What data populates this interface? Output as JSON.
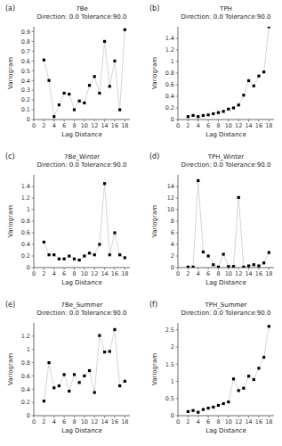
{
  "chart_data": [
    {
      "type": "line",
      "annotation": "(a)",
      "title": "7Be\nDirection: 0.0 Tolerance:90.0",
      "x_label": "Lag Distance",
      "y_label": "Variogram",
      "x": [
        2,
        3,
        4,
        5,
        6,
        7,
        8,
        9,
        10,
        11,
        12,
        13,
        14,
        15,
        16,
        17,
        18
      ],
      "values": [
        0.61,
        0.4,
        0.03,
        0.15,
        0.27,
        0.26,
        0.1,
        0.19,
        0.17,
        0.35,
        0.44,
        0.27,
        0.8,
        0.34,
        0.6,
        0.1,
        0.92
      ],
      "xlim": [
        0,
        19
      ],
      "xticks": [
        0,
        2,
        4,
        6,
        8,
        10,
        12,
        14,
        16,
        18
      ],
      "ylim": [
        0,
        0.95
      ],
      "yticks": [
        0,
        0.1,
        0.2,
        0.3,
        0.4,
        0.5,
        0.6,
        0.7,
        0.8,
        0.9
      ],
      "color": "#cccccc",
      "marker": "square",
      "colors": [
        "black",
        "black",
        "black",
        "black",
        "black",
        "black",
        "black",
        "black",
        "black",
        "black",
        "black",
        "black",
        "black",
        "black",
        "black",
        "black",
        "black"
      ]
    },
    {
      "type": "line",
      "annotation": "(b)",
      "title": "TPH\nDirection: 0.0 Tolerance:90.0",
      "x_label": "Lag Distance",
      "y_label": "Variogram",
      "x": [
        2,
        3,
        4,
        5,
        6,
        7,
        8,
        9,
        10,
        11,
        12,
        13,
        14,
        15,
        16,
        17,
        18
      ],
      "values": [
        0.05,
        0.07,
        0.05,
        0.07,
        0.08,
        0.1,
        0.12,
        0.14,
        0.18,
        0.2,
        0.25,
        0.42,
        0.67,
        0.58,
        0.75,
        0.82,
        1.6
      ],
      "xlim": [
        0,
        19
      ],
      "xticks": [
        0,
        2,
        4,
        6,
        8,
        10,
        12,
        14,
        16,
        18
      ],
      "ylim": [
        0,
        1.6
      ],
      "yticks": [
        0,
        0.2,
        0.4,
        0.6,
        0.8,
        1.0,
        1.2,
        1.4
      ],
      "color": "#cccccc",
      "marker": "square",
      "colors": [
        "black",
        "black",
        "black",
        "black",
        "black",
        "black",
        "black",
        "black",
        "black",
        "black",
        "black",
        "black",
        "black",
        "black",
        "black",
        "black",
        "black"
      ]
    },
    {
      "type": "line",
      "annotation": "(c)",
      "title": "7Be_Winter\nDirection: 0.0 Tolerance:90.0",
      "x_label": "Lag Distance",
      "y_label": "Variogram",
      "x": [
        2,
        3,
        4,
        5,
        6,
        7,
        8,
        9,
        10,
        11,
        12,
        13,
        14,
        15,
        16,
        17,
        18
      ],
      "values": [
        0.44,
        0.22,
        0.22,
        0.15,
        0.15,
        0.2,
        0.15,
        0.13,
        0.2,
        0.25,
        0.22,
        0.4,
        1.45,
        0.22,
        0.6,
        0.22,
        0.17
      ],
      "xlim": [
        0,
        19
      ],
      "xticks": [
        0,
        2,
        4,
        6,
        8,
        10,
        12,
        14,
        16,
        18
      ],
      "ylim": [
        0,
        1.6
      ],
      "yticks": [
        0,
        0.2,
        0.4,
        0.6,
        0.8,
        1.0,
        1.2,
        1.4
      ],
      "color": "#cccccc",
      "marker": "square",
      "colors": [
        "black",
        "black",
        "black",
        "black",
        "black",
        "black",
        "black",
        "black",
        "black",
        "black",
        "black",
        "black",
        "black",
        "black",
        "black",
        "black",
        "black"
      ]
    },
    {
      "type": "line",
      "annotation": "(d)",
      "title": "TPH_Winter\nDirection: 0.0 Tolerance:90.0",
      "x_label": "Lag Distance",
      "y_label": "Variogram",
      "x": [
        2,
        3,
        4,
        5,
        6,
        7,
        8,
        9,
        10,
        11,
        12,
        13,
        14,
        15,
        16,
        17,
        18
      ],
      "values": [
        0.1,
        0.1,
        15.0,
        2.7,
        2.0,
        0.5,
        0.1,
        2.3,
        0.2,
        0.2,
        12.1,
        0.1,
        0.3,
        0.5,
        0.3,
        0.8,
        2.6
      ],
      "xlim": [
        0,
        19
      ],
      "xticks": [
        0,
        2,
        4,
        6,
        8,
        10,
        12,
        14,
        16,
        18
      ],
      "ylim": [
        0,
        16
      ],
      "yticks": [
        0,
        2,
        4,
        6,
        8,
        10,
        12,
        14
      ],
      "color": "#cccccc",
      "marker": "square",
      "colors": [
        "black",
        "black",
        "black",
        "black",
        "black",
        "black",
        "black",
        "black",
        "black",
        "black",
        "black",
        "black",
        "black",
        "black",
        "black",
        "black",
        "black"
      ]
    },
    {
      "type": "line",
      "annotation": "(e)",
      "title": "7Be_Summer\nDirection: 0.0 Tolerance:90.0",
      "x_label": "Lag Distance",
      "y_label": "Variogram",
      "x": [
        2,
        3,
        4,
        5,
        6,
        7,
        8,
        9,
        10,
        11,
        12,
        13,
        14,
        15,
        16,
        17,
        18
      ],
      "values": [
        0.22,
        0.8,
        0.42,
        0.45,
        0.62,
        0.37,
        0.62,
        0.5,
        0.6,
        0.68,
        0.35,
        1.21,
        0.96,
        0.97,
        1.3,
        0.45,
        0.52
      ],
      "xlim": [
        0,
        19
      ],
      "xticks": [
        0,
        2,
        4,
        6,
        8,
        10,
        12,
        14,
        16,
        18
      ],
      "ylim": [
        0,
        1.4
      ],
      "yticks": [
        0,
        0.2,
        0.4,
        0.6,
        0.8,
        1.0,
        1.2
      ],
      "color": "#cccccc",
      "marker": "square",
      "colors": [
        "black",
        "black",
        "black",
        "black",
        "black",
        "black",
        "black",
        "black",
        "black",
        "black",
        "black",
        "black",
        "black",
        "black",
        "black",
        "black",
        "black"
      ]
    },
    {
      "type": "line",
      "annotation": "(f)",
      "title": "TPH_Summer\nDirection: 0.0 Tolerance:90.0",
      "x_label": "Lag Distance",
      "y_label": "Variogram",
      "x": [
        2,
        3,
        4,
        5,
        6,
        7,
        8,
        9,
        10,
        11,
        12,
        13,
        14,
        15,
        16,
        17,
        18
      ],
      "values": [
        0.12,
        0.15,
        0.1,
        0.18,
        0.22,
        0.25,
        0.3,
        0.35,
        0.4,
        1.07,
        0.73,
        0.8,
        1.15,
        1.05,
        1.38,
        1.7,
        2.6
      ],
      "xlim": [
        0,
        19
      ],
      "xticks": [
        0,
        2,
        4,
        6,
        8,
        10,
        12,
        14,
        16,
        18
      ],
      "ylim": [
        0,
        2.7
      ],
      "yticks": [
        0,
        0.5,
        1.0,
        1.5,
        2.0,
        2.5
      ],
      "color": "#cccccc",
      "marker": "square",
      "colors": [
        "black",
        "black",
        "black",
        "black",
        "black",
        "black",
        "black",
        "black",
        "black",
        "black",
        "black",
        "black",
        "black",
        "black",
        "black",
        "black",
        "black"
      ]
    }
  ]
}
